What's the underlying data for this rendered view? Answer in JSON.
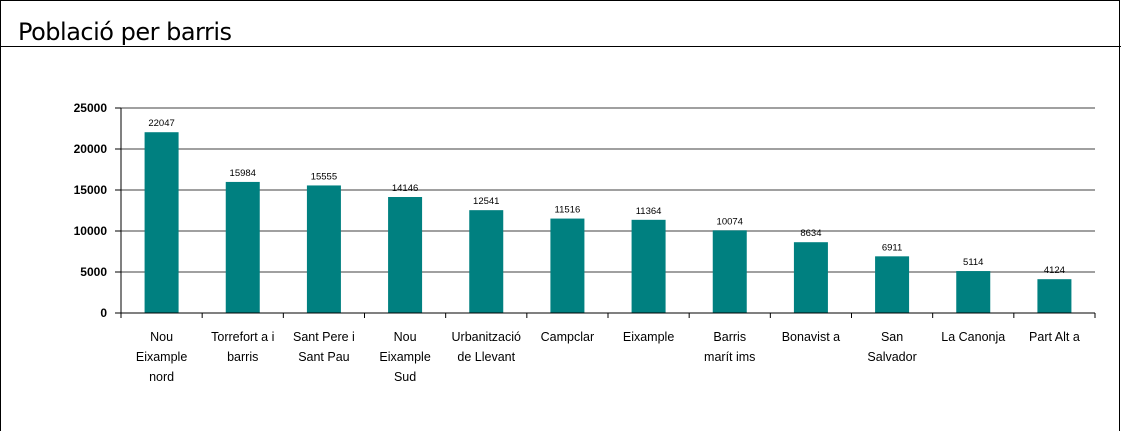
{
  "header": {
    "title": "Població per barris"
  },
  "colors": {
    "bar": "#008080",
    "grid": "#808080",
    "axis": "#000000"
  },
  "chart_data": {
    "type": "bar",
    "title": "Població per barris",
    "xlabel": "",
    "ylabel": "",
    "ylim": [
      0,
      25000
    ],
    "yticks": [
      0,
      5000,
      10000,
      15000,
      20000,
      25000
    ],
    "grid": true,
    "legend": "none",
    "categories": [
      "Nou Eixample nord",
      "Torreforta i barris",
      "Sant Pere i Sant Pau",
      "Nou Eixample Sud",
      "Urbanització de Llevant",
      "Campclar",
      "Eixample",
      "Barris marítims",
      "Bonavista",
      "San Salvador",
      "La Canonja",
      "Part Alta"
    ],
    "category_lines": [
      [
        "Nou",
        "Eixample",
        "nord"
      ],
      [
        "Torrefort a i",
        "barris"
      ],
      [
        "Sant Pere i",
        "Sant Pau"
      ],
      [
        "Nou",
        "Eixample",
        "Sud"
      ],
      [
        "Urbanització",
        "de Llevant"
      ],
      [
        "Campclar"
      ],
      [
        "Eixample"
      ],
      [
        "Barris",
        "marít ims"
      ],
      [
        "Bonavist a"
      ],
      [
        "San",
        "Salvador"
      ],
      [
        "La Canonja"
      ],
      [
        "Part Alt a"
      ]
    ],
    "values": [
      22047,
      15984,
      15555,
      14146,
      12541,
      11516,
      11364,
      10074,
      8634,
      6911,
      5114,
      4124
    ]
  }
}
